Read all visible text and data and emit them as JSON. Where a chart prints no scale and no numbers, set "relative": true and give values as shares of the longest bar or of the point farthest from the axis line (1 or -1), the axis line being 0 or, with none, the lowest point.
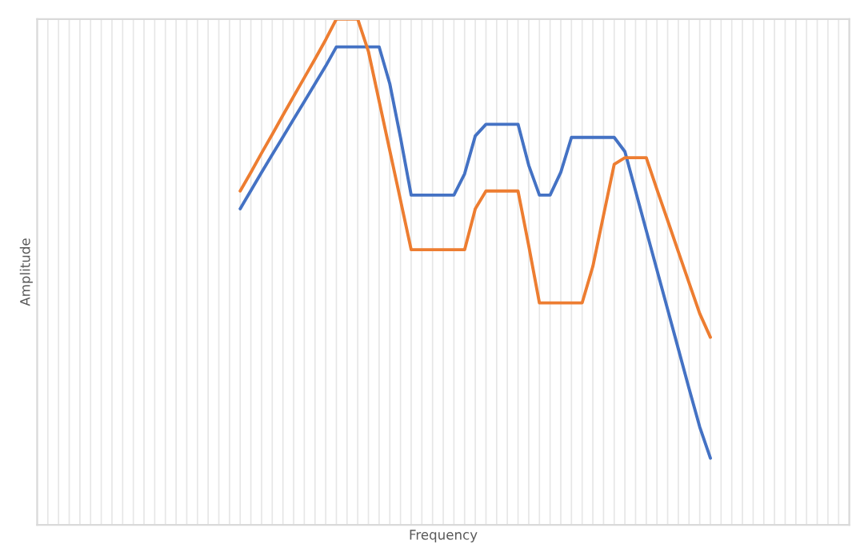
{
  "chart_data": {
    "type": "line",
    "xlabel": "Frequency",
    "ylabel": "Amplitude",
    "relative": true,
    "grid": true,
    "tick_labels": false,
    "categories": [
      null,
      null,
      null,
      null,
      null,
      null,
      null,
      null,
      null,
      null,
      null,
      null,
      null,
      null,
      null,
      null,
      null,
      null,
      null,
      null,
      null,
      null,
      null,
      null,
      null,
      null,
      null,
      null,
      null,
      null,
      null,
      null,
      null,
      null,
      null,
      null,
      null,
      null,
      null,
      null,
      null,
      null,
      null,
      null,
      null,
      null,
      null,
      null,
      null,
      null,
      null,
      null,
      null,
      null,
      null,
      null,
      null,
      null,
      null,
      null,
      null,
      null,
      null,
      null,
      null,
      null,
      null,
      null,
      null,
      null,
      null,
      null,
      null,
      null,
      null,
      null,
      null
    ],
    "series": [
      {
        "color": "#4472c4",
        "values": [
          null,
          null,
          null,
          null,
          null,
          null,
          null,
          null,
          null,
          null,
          null,
          null,
          null,
          null,
          null,
          null,
          null,
          null,
          null,
          0.625,
          0.661,
          0.697,
          0.732,
          0.767,
          0.802,
          0.837,
          0.872,
          0.907,
          0.945,
          0.945,
          0.945,
          0.945,
          0.945,
          0.872,
          0.766,
          0.652,
          0.652,
          0.652,
          0.652,
          0.652,
          0.694,
          0.769,
          0.792,
          0.792,
          0.792,
          0.792,
          0.711,
          0.652,
          0.652,
          0.697,
          0.766,
          0.766,
          0.766,
          0.766,
          0.766,
          0.738,
          0.66,
          0.582,
          0.504,
          0.426,
          0.348,
          0.27,
          0.194,
          0.132,
          null,
          null,
          null,
          null,
          null,
          null,
          null,
          null,
          null,
          null,
          null,
          null,
          null
        ]
      },
      {
        "color": "#ed7d31",
        "values": [
          null,
          null,
          null,
          null,
          null,
          null,
          null,
          null,
          null,
          null,
          null,
          null,
          null,
          null,
          null,
          null,
          null,
          null,
          null,
          0.66,
          0.697,
          0.735,
          0.772,
          0.81,
          0.847,
          0.884,
          0.921,
          0.959,
          1,
          1,
          1,
          0.936,
          0.838,
          0.74,
          0.642,
          0.544,
          0.544,
          0.544,
          0.544,
          0.544,
          0.544,
          0.625,
          0.66,
          0.66,
          0.66,
          0.66,
          0.552,
          0.439,
          0.439,
          0.439,
          0.439,
          0.439,
          0.511,
          0.612,
          0.713,
          0.726,
          0.726,
          0.726,
          0.663,
          0.602,
          0.54,
          0.479,
          0.418,
          0.371,
          null,
          null,
          null,
          null,
          null,
          null,
          null,
          null,
          null,
          null,
          null,
          null,
          null
        ]
      }
    ]
  }
}
